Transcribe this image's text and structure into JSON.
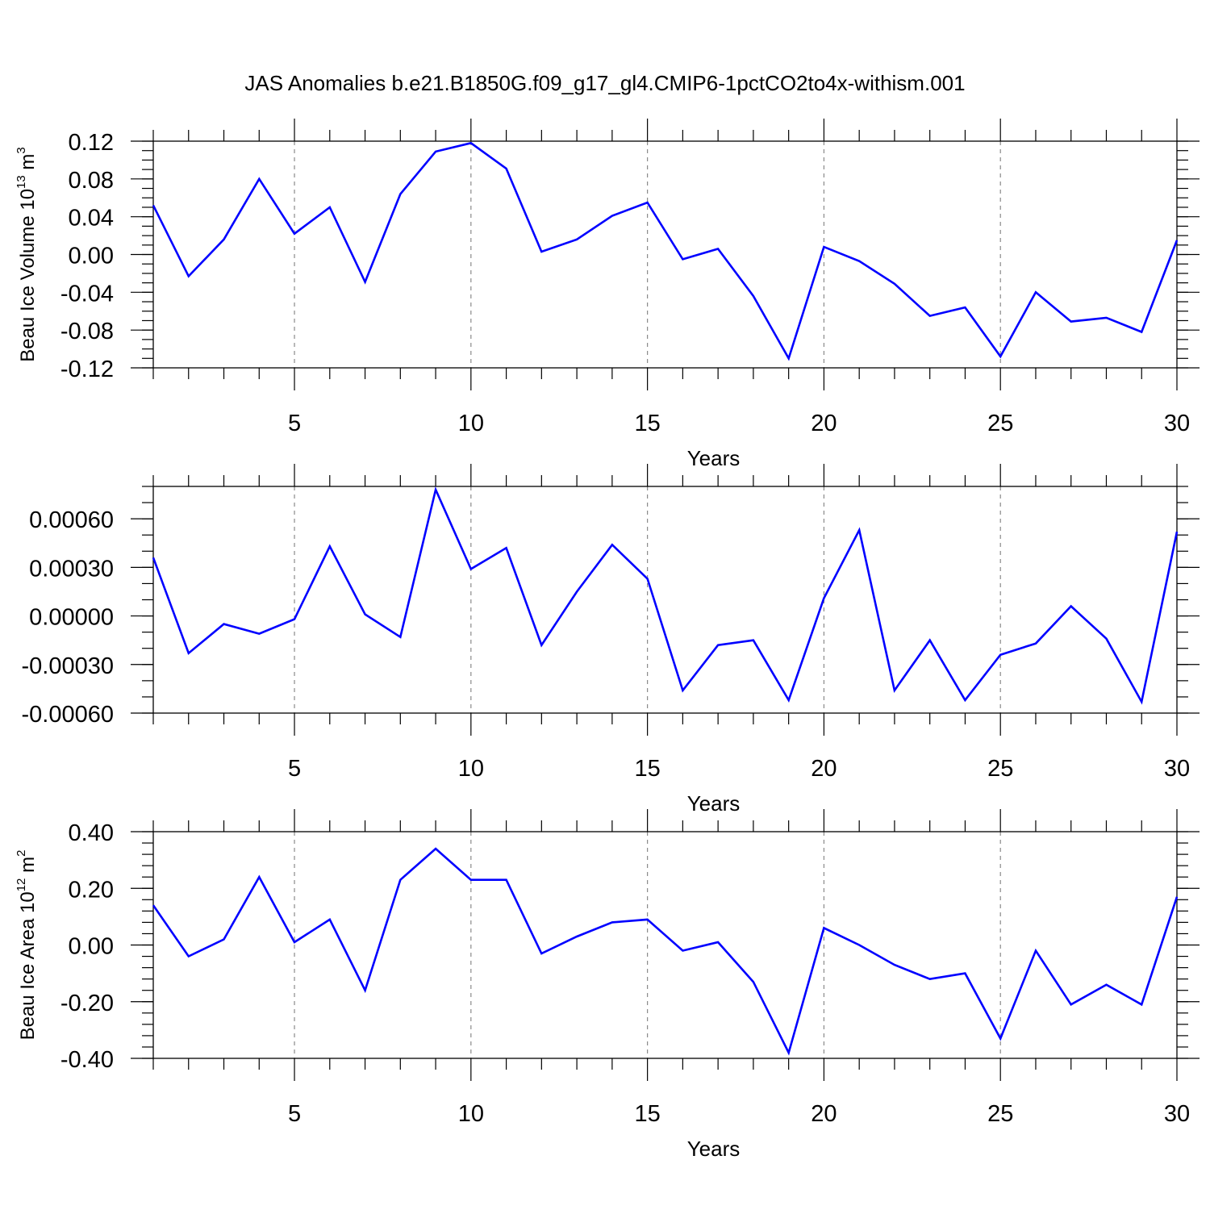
{
  "title": "JAS Anomalies b.e21.B1850G.f09_g17_gl4.CMIP6-1pctCO2to4x-withism.001",
  "colors": {
    "series": "#0000ff",
    "grid": "#8a8a8a",
    "axis": "#000000"
  },
  "chart_data": [
    {
      "type": "line",
      "name": "volume-panel",
      "xlabel": "Years",
      "ylabel": {
        "base": "Beau Ice Volume 10",
        "sup1": "13",
        "mid": " m",
        "sup2": "3"
      },
      "xlim": [
        1,
        30
      ],
      "ylim": [
        -0.12,
        0.12
      ],
      "x_ticks": [
        5,
        10,
        15,
        20,
        25,
        30
      ],
      "y_ticks": [
        0.12,
        0.08,
        0.04,
        0.0,
        -0.04,
        -0.08,
        -0.12
      ],
      "y_tick_labels": [
        "0.12",
        "0.08",
        "0.04",
        "0.00",
        "-0.04",
        "-0.08",
        "-0.12"
      ],
      "y_minor_step": 0.01,
      "grid_x": [
        5,
        10,
        15,
        20,
        25
      ],
      "x": [
        1,
        2,
        3,
        4,
        5,
        6,
        7,
        8,
        9,
        10,
        11,
        12,
        13,
        14,
        15,
        16,
        17,
        18,
        19,
        20,
        21,
        22,
        23,
        24,
        25,
        26,
        27,
        28,
        29,
        30
      ],
      "values": [
        0.052,
        -0.023,
        0.016,
        0.08,
        0.022,
        0.05,
        -0.029,
        0.064,
        0.109,
        0.118,
        0.091,
        0.003,
        0.016,
        0.041,
        0.055,
        -0.005,
        0.006,
        -0.044,
        -0.11,
        0.008,
        -0.007,
        -0.031,
        -0.065,
        -0.056,
        -0.108,
        -0.04,
        -0.071,
        -0.067,
        -0.082,
        0.015
      ]
    },
    {
      "type": "line",
      "name": "middle-panel",
      "xlabel": "Years",
      "ylabel": null,
      "xlim": [
        1,
        30
      ],
      "ylim": [
        -0.0006,
        0.0008
      ],
      "x_ticks": [
        5,
        10,
        15,
        20,
        25,
        30
      ],
      "y_ticks": [
        0.0006,
        0.0003,
        0.0,
        -0.0003,
        -0.0006
      ],
      "y_tick_labels": [
        "0.00060",
        "0.00030",
        "0.00000",
        "-0.00030",
        "-0.00060"
      ],
      "y_minor_step": 0.0001,
      "grid_x": [
        5,
        10,
        15,
        20,
        25
      ],
      "x": [
        1,
        2,
        3,
        4,
        5,
        6,
        7,
        8,
        9,
        10,
        11,
        12,
        13,
        14,
        15,
        16,
        17,
        18,
        19,
        20,
        21,
        22,
        23,
        24,
        25,
        26,
        27,
        28,
        29,
        30
      ],
      "values": [
        0.00036,
        -0.00023,
        -5e-05,
        -0.00011,
        -2e-05,
        0.00043,
        1e-05,
        -0.00013,
        0.00078,
        0.00029,
        0.00042,
        -0.00018,
        0.00015,
        0.00044,
        0.00023,
        -0.00046,
        -0.00018,
        -0.00015,
        -0.00052,
        0.00011,
        0.00053,
        -0.00046,
        -0.00015,
        -0.00052,
        -0.00024,
        -0.00017,
        6e-05,
        -0.00014,
        -0.00053,
        0.00052
      ]
    },
    {
      "type": "line",
      "name": "area-panel",
      "xlabel": "Years",
      "ylabel": {
        "base": "Beau Ice Area 10",
        "sup1": "12",
        "mid": " m",
        "sup2": "2"
      },
      "xlim": [
        1,
        30
      ],
      "ylim": [
        -0.4,
        0.4
      ],
      "x_ticks": [
        5,
        10,
        15,
        20,
        25,
        30
      ],
      "y_ticks": [
        0.4,
        0.2,
        0.0,
        -0.2,
        -0.4
      ],
      "y_tick_labels": [
        "0.40",
        "0.20",
        "0.00",
        "-0.20",
        "-0.40"
      ],
      "y_minor_step": 0.04,
      "grid_x": [
        5,
        10,
        15,
        20,
        25
      ],
      "x": [
        1,
        2,
        3,
        4,
        5,
        6,
        7,
        8,
        9,
        10,
        11,
        12,
        13,
        14,
        15,
        16,
        17,
        18,
        19,
        20,
        21,
        22,
        23,
        24,
        25,
        26,
        27,
        28,
        29,
        30
      ],
      "values": [
        0.14,
        -0.04,
        0.02,
        0.24,
        0.01,
        0.09,
        -0.16,
        0.23,
        0.34,
        0.23,
        0.23,
        -0.03,
        0.03,
        0.08,
        0.09,
        -0.02,
        0.01,
        -0.13,
        -0.38,
        0.06,
        0.0,
        -0.07,
        -0.12,
        -0.1,
        -0.33,
        -0.02,
        -0.21,
        -0.14,
        -0.21,
        0.17
      ]
    }
  ]
}
